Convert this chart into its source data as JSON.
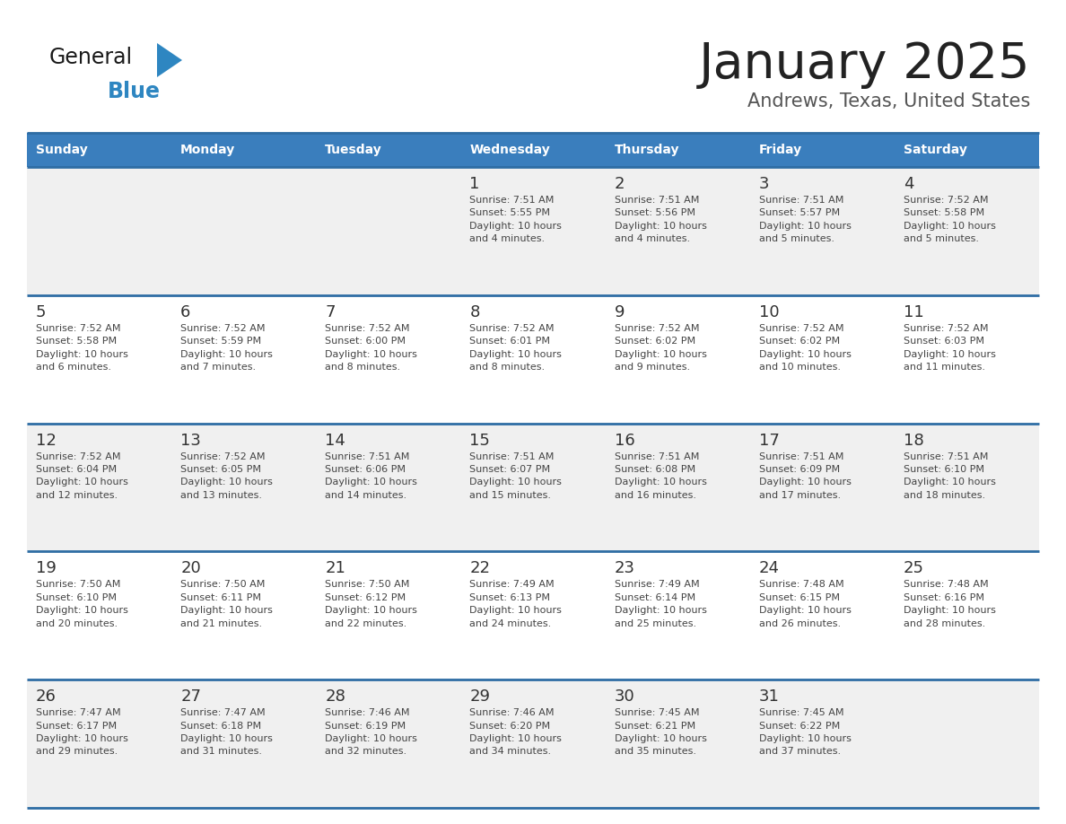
{
  "title": "January 2025",
  "subtitle": "Andrews, Texas, United States",
  "header_bg_color": "#3A7EBD",
  "header_text_color": "#FFFFFF",
  "day_headers": [
    "Sunday",
    "Monday",
    "Tuesday",
    "Wednesday",
    "Thursday",
    "Friday",
    "Saturday"
  ],
  "row_bg_white": "#FFFFFF",
  "row_bg_gray": "#F0F0F0",
  "cell_border_color": "#2E6DA4",
  "number_color": "#333333",
  "text_color": "#444444",
  "title_color": "#222222",
  "subtitle_color": "#555555",
  "logo_color_general": "#1A1A1A",
  "logo_color_blue": "#2E86C1",
  "logo_triangle_color": "#2E86C1",
  "calendar_data": [
    [
      {
        "day": null,
        "text": ""
      },
      {
        "day": null,
        "text": ""
      },
      {
        "day": null,
        "text": ""
      },
      {
        "day": 1,
        "text": "Sunrise: 7:51 AM\nSunset: 5:55 PM\nDaylight: 10 hours\nand 4 minutes."
      },
      {
        "day": 2,
        "text": "Sunrise: 7:51 AM\nSunset: 5:56 PM\nDaylight: 10 hours\nand 4 minutes."
      },
      {
        "day": 3,
        "text": "Sunrise: 7:51 AM\nSunset: 5:57 PM\nDaylight: 10 hours\nand 5 minutes."
      },
      {
        "day": 4,
        "text": "Sunrise: 7:52 AM\nSunset: 5:58 PM\nDaylight: 10 hours\nand 5 minutes."
      }
    ],
    [
      {
        "day": 5,
        "text": "Sunrise: 7:52 AM\nSunset: 5:58 PM\nDaylight: 10 hours\nand 6 minutes."
      },
      {
        "day": 6,
        "text": "Sunrise: 7:52 AM\nSunset: 5:59 PM\nDaylight: 10 hours\nand 7 minutes."
      },
      {
        "day": 7,
        "text": "Sunrise: 7:52 AM\nSunset: 6:00 PM\nDaylight: 10 hours\nand 8 minutes."
      },
      {
        "day": 8,
        "text": "Sunrise: 7:52 AM\nSunset: 6:01 PM\nDaylight: 10 hours\nand 8 minutes."
      },
      {
        "day": 9,
        "text": "Sunrise: 7:52 AM\nSunset: 6:02 PM\nDaylight: 10 hours\nand 9 minutes."
      },
      {
        "day": 10,
        "text": "Sunrise: 7:52 AM\nSunset: 6:02 PM\nDaylight: 10 hours\nand 10 minutes."
      },
      {
        "day": 11,
        "text": "Sunrise: 7:52 AM\nSunset: 6:03 PM\nDaylight: 10 hours\nand 11 minutes."
      }
    ],
    [
      {
        "day": 12,
        "text": "Sunrise: 7:52 AM\nSunset: 6:04 PM\nDaylight: 10 hours\nand 12 minutes."
      },
      {
        "day": 13,
        "text": "Sunrise: 7:52 AM\nSunset: 6:05 PM\nDaylight: 10 hours\nand 13 minutes."
      },
      {
        "day": 14,
        "text": "Sunrise: 7:51 AM\nSunset: 6:06 PM\nDaylight: 10 hours\nand 14 minutes."
      },
      {
        "day": 15,
        "text": "Sunrise: 7:51 AM\nSunset: 6:07 PM\nDaylight: 10 hours\nand 15 minutes."
      },
      {
        "day": 16,
        "text": "Sunrise: 7:51 AM\nSunset: 6:08 PM\nDaylight: 10 hours\nand 16 minutes."
      },
      {
        "day": 17,
        "text": "Sunrise: 7:51 AM\nSunset: 6:09 PM\nDaylight: 10 hours\nand 17 minutes."
      },
      {
        "day": 18,
        "text": "Sunrise: 7:51 AM\nSunset: 6:10 PM\nDaylight: 10 hours\nand 18 minutes."
      }
    ],
    [
      {
        "day": 19,
        "text": "Sunrise: 7:50 AM\nSunset: 6:10 PM\nDaylight: 10 hours\nand 20 minutes."
      },
      {
        "day": 20,
        "text": "Sunrise: 7:50 AM\nSunset: 6:11 PM\nDaylight: 10 hours\nand 21 minutes."
      },
      {
        "day": 21,
        "text": "Sunrise: 7:50 AM\nSunset: 6:12 PM\nDaylight: 10 hours\nand 22 minutes."
      },
      {
        "day": 22,
        "text": "Sunrise: 7:49 AM\nSunset: 6:13 PM\nDaylight: 10 hours\nand 24 minutes."
      },
      {
        "day": 23,
        "text": "Sunrise: 7:49 AM\nSunset: 6:14 PM\nDaylight: 10 hours\nand 25 minutes."
      },
      {
        "day": 24,
        "text": "Sunrise: 7:48 AM\nSunset: 6:15 PM\nDaylight: 10 hours\nand 26 minutes."
      },
      {
        "day": 25,
        "text": "Sunrise: 7:48 AM\nSunset: 6:16 PM\nDaylight: 10 hours\nand 28 minutes."
      }
    ],
    [
      {
        "day": 26,
        "text": "Sunrise: 7:47 AM\nSunset: 6:17 PM\nDaylight: 10 hours\nand 29 minutes."
      },
      {
        "day": 27,
        "text": "Sunrise: 7:47 AM\nSunset: 6:18 PM\nDaylight: 10 hours\nand 31 minutes."
      },
      {
        "day": 28,
        "text": "Sunrise: 7:46 AM\nSunset: 6:19 PM\nDaylight: 10 hours\nand 32 minutes."
      },
      {
        "day": 29,
        "text": "Sunrise: 7:46 AM\nSunset: 6:20 PM\nDaylight: 10 hours\nand 34 minutes."
      },
      {
        "day": 30,
        "text": "Sunrise: 7:45 AM\nSunset: 6:21 PM\nDaylight: 10 hours\nand 35 minutes."
      },
      {
        "day": 31,
        "text": "Sunrise: 7:45 AM\nSunset: 6:22 PM\nDaylight: 10 hours\nand 37 minutes."
      },
      {
        "day": null,
        "text": ""
      }
    ]
  ]
}
